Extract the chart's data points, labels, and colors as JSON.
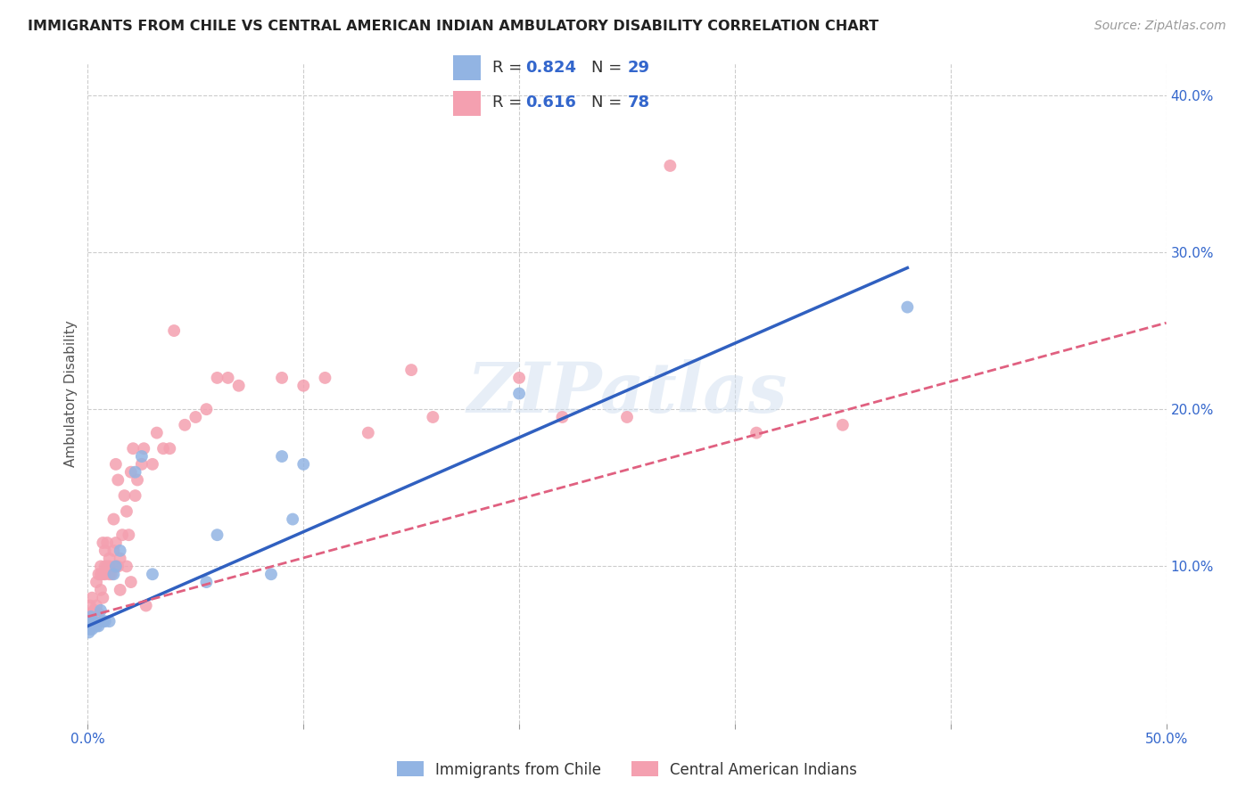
{
  "title": "IMMIGRANTS FROM CHILE VS CENTRAL AMERICAN INDIAN AMBULATORY DISABILITY CORRELATION CHART",
  "source": "Source: ZipAtlas.com",
  "ylabel": "Ambulatory Disability",
  "xlim": [
    0.0,
    0.5
  ],
  "ylim": [
    0.0,
    0.42
  ],
  "x_ticks": [
    0.0,
    0.1,
    0.2,
    0.3,
    0.4,
    0.5
  ],
  "x_tick_labels": [
    "0.0%",
    "",
    "",
    "",
    "",
    "50.0%"
  ],
  "y_ticks_right": [
    0.1,
    0.2,
    0.3,
    0.4
  ],
  "y_tick_labels_right": [
    "10.0%",
    "20.0%",
    "30.0%",
    "40.0%"
  ],
  "chile_color": "#92b4e3",
  "ca_indian_color": "#f4a0b0",
  "chile_line_color": "#3060c0",
  "ca_indian_line_color": "#e06080",
  "r_chile": 0.824,
  "n_chile": 29,
  "r_ca": 0.616,
  "n_ca": 78,
  "legend_label_chile": "Immigrants from Chile",
  "legend_label_ca": "Central American Indians",
  "watermark": "ZIPatlas",
  "chile_x": [
    0.0005,
    0.001,
    0.001,
    0.001,
    0.0015,
    0.002,
    0.002,
    0.003,
    0.003,
    0.004,
    0.005,
    0.006,
    0.007,
    0.008,
    0.01,
    0.012,
    0.013,
    0.015,
    0.022,
    0.025,
    0.03,
    0.055,
    0.06,
    0.085,
    0.095,
    0.1,
    0.09,
    0.2,
    0.38
  ],
  "chile_y": [
    0.058,
    0.06,
    0.062,
    0.065,
    0.068,
    0.06,
    0.065,
    0.062,
    0.065,
    0.062,
    0.062,
    0.072,
    0.065,
    0.065,
    0.065,
    0.095,
    0.1,
    0.11,
    0.16,
    0.17,
    0.095,
    0.09,
    0.12,
    0.095,
    0.13,
    0.165,
    0.17,
    0.21,
    0.265
  ],
  "ca_x": [
    0.001,
    0.001,
    0.001,
    0.001,
    0.001,
    0.002,
    0.002,
    0.002,
    0.002,
    0.003,
    0.003,
    0.003,
    0.004,
    0.004,
    0.004,
    0.005,
    0.005,
    0.005,
    0.006,
    0.006,
    0.006,
    0.007,
    0.007,
    0.007,
    0.008,
    0.008,
    0.008,
    0.009,
    0.009,
    0.01,
    0.01,
    0.01,
    0.011,
    0.012,
    0.012,
    0.013,
    0.013,
    0.013,
    0.014,
    0.014,
    0.015,
    0.015,
    0.016,
    0.017,
    0.018,
    0.018,
    0.019,
    0.02,
    0.02,
    0.021,
    0.022,
    0.023,
    0.025,
    0.026,
    0.027,
    0.03,
    0.032,
    0.035,
    0.038,
    0.04,
    0.045,
    0.05,
    0.055,
    0.06,
    0.065,
    0.07,
    0.09,
    0.1,
    0.11,
    0.13,
    0.15,
    0.16,
    0.2,
    0.22,
    0.25,
    0.27,
    0.31,
    0.35
  ],
  "ca_y": [
    0.06,
    0.065,
    0.068,
    0.07,
    0.075,
    0.062,
    0.065,
    0.07,
    0.08,
    0.065,
    0.068,
    0.072,
    0.068,
    0.075,
    0.09,
    0.065,
    0.07,
    0.095,
    0.085,
    0.095,
    0.1,
    0.08,
    0.095,
    0.115,
    0.095,
    0.1,
    0.11,
    0.1,
    0.115,
    0.095,
    0.1,
    0.105,
    0.095,
    0.11,
    0.13,
    0.1,
    0.115,
    0.165,
    0.1,
    0.155,
    0.085,
    0.105,
    0.12,
    0.145,
    0.1,
    0.135,
    0.12,
    0.09,
    0.16,
    0.175,
    0.145,
    0.155,
    0.165,
    0.175,
    0.075,
    0.165,
    0.185,
    0.175,
    0.175,
    0.25,
    0.19,
    0.195,
    0.2,
    0.22,
    0.22,
    0.215,
    0.22,
    0.215,
    0.22,
    0.185,
    0.225,
    0.195,
    0.22,
    0.195,
    0.195,
    0.355,
    0.185,
    0.19
  ],
  "chile_line_x0": 0.0,
  "chile_line_y0": 0.062,
  "chile_line_x1": 0.38,
  "chile_line_y1": 0.29,
  "ca_line_x0": 0.0,
  "ca_line_y0": 0.068,
  "ca_line_x1": 0.5,
  "ca_line_y1": 0.255
}
